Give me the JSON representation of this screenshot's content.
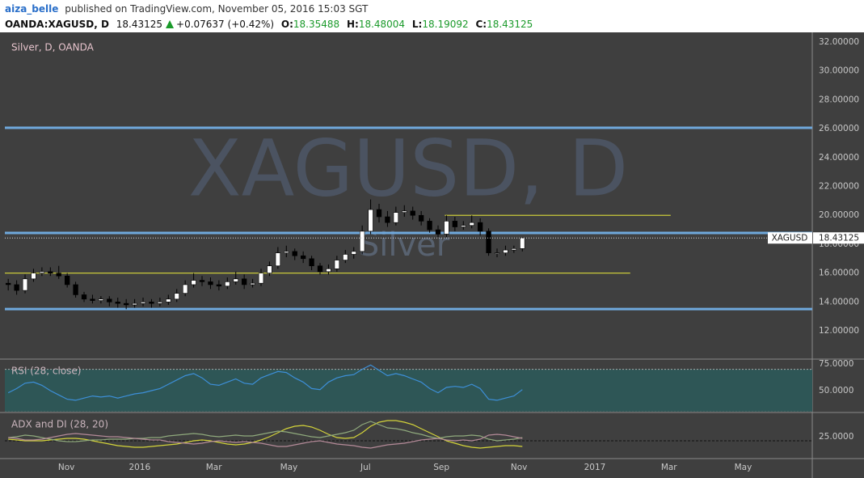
{
  "header": {
    "author": "aiza_belle",
    "published": "published on TradingView.com, November 05, 2016 15:03 SGT",
    "symbol": "OANDA:XAGUSD, D",
    "price": 18.43125,
    "change": "+0.07637 (+0.42%)",
    "open_label": "O:",
    "open": 18.35488,
    "high_label": "H:",
    "high": 18.48004,
    "low_label": "L:",
    "low": 18.19092,
    "close_label": "C:",
    "close": 18.43125
  },
  "chart_data": [
    {
      "type": "candlestick",
      "title": "Silver, D, OANDA",
      "watermark": "XAGUSD, D",
      "watermark_sub": "Silver",
      "price_label": "XAGUSD",
      "up_color": "#ffffff",
      "down_color": "#000000",
      "open": [
        15.3,
        15.2,
        14.8,
        15.6,
        16.0,
        16.1,
        16.0,
        15.8,
        15.2,
        14.5,
        14.2,
        14.1,
        14.2,
        14.0,
        13.9,
        13.8,
        13.9,
        14.0,
        13.9,
        14.0,
        14.2,
        14.6,
        15.2,
        15.5,
        15.4,
        15.2,
        15.1,
        15.4,
        15.6,
        15.2,
        15.3,
        16.0,
        16.5,
        17.4,
        17.5,
        17.2,
        17.0,
        16.5,
        16.1,
        16.3,
        16.9,
        17.3,
        17.5,
        18.9,
        20.4,
        19.9,
        19.5,
        20.2,
        20.3,
        20.0,
        19.6,
        19.0,
        18.7,
        19.6,
        19.2,
        19.3,
        19.5,
        18.9,
        17.4,
        17.4,
        17.6,
        17.7
      ],
      "high": [
        15.6,
        15.5,
        15.9,
        16.3,
        16.4,
        16.4,
        16.5,
        16.0,
        15.4,
        14.7,
        14.5,
        14.4,
        14.4,
        14.3,
        14.2,
        14.2,
        14.3,
        14.2,
        14.3,
        14.5,
        14.9,
        15.5,
        16.0,
        15.8,
        15.7,
        15.5,
        15.7,
        16.1,
        15.9,
        15.6,
        16.3,
        16.8,
        17.8,
        17.9,
        17.7,
        17.5,
        17.2,
        16.7,
        16.6,
        17.2,
        17.6,
        17.8,
        19.3,
        21.1,
        20.8,
        20.3,
        20.6,
        20.7,
        20.6,
        20.3,
        19.8,
        19.3,
        20.0,
        19.9,
        19.6,
        20.0,
        19.8,
        19.1,
        17.7,
        17.9,
        17.9,
        18.48
      ],
      "low": [
        14.8,
        14.5,
        14.6,
        15.4,
        15.8,
        15.8,
        15.6,
        15.0,
        14.3,
        14.0,
        13.9,
        13.9,
        13.7,
        13.6,
        13.5,
        13.6,
        13.7,
        13.6,
        13.7,
        13.8,
        14.0,
        14.4,
        15.0,
        15.1,
        14.9,
        14.8,
        14.9,
        15.2,
        14.9,
        15.0,
        15.1,
        15.8,
        16.3,
        17.1,
        16.9,
        16.7,
        16.2,
        15.9,
        15.9,
        16.1,
        16.7,
        17.0,
        17.3,
        18.7,
        19.5,
        19.2,
        19.3,
        19.9,
        19.7,
        19.3,
        18.8,
        18.5,
        18.5,
        18.9,
        19.0,
        19.1,
        18.6,
        17.2,
        17.1,
        17.2,
        17.4,
        17.5
      ],
      "close": [
        15.2,
        14.8,
        15.6,
        16.0,
        16.1,
        16.0,
        15.8,
        15.2,
        14.5,
        14.2,
        14.1,
        14.2,
        14.0,
        13.9,
        13.8,
        13.9,
        14.0,
        13.9,
        14.0,
        14.2,
        14.6,
        15.2,
        15.5,
        15.4,
        15.2,
        15.1,
        15.4,
        15.6,
        15.2,
        15.3,
        16.0,
        16.5,
        17.4,
        17.5,
        17.2,
        17.0,
        16.5,
        16.1,
        16.3,
        16.9,
        17.3,
        17.5,
        18.9,
        20.4,
        19.9,
        19.5,
        20.2,
        20.3,
        20.0,
        19.6,
        19.0,
        18.7,
        19.6,
        19.2,
        19.3,
        19.5,
        18.9,
        17.4,
        17.4,
        17.6,
        17.7,
        18.43125
      ],
      "levels": [
        {
          "value": 26.06,
          "color": "#6fa8dc"
        },
        {
          "value": 18.78,
          "color": "#6fa8dc"
        },
        {
          "value": 13.51,
          "color": "#6fa8dc"
        }
      ],
      "segments": [
        {
          "value": 20.0,
          "x": [
            51.8,
            78.6
          ],
          "color": "#c9c93a"
        },
        {
          "value": 16.0,
          "x": [
            -0.4,
            73.8
          ],
          "color": "#c9c93a"
        }
      ],
      "xlim": [
        -0.4,
        95.4
      ],
      "ylim": [
        10.1,
        32.56
      ],
      "yticks": [
        {
          "value": 12,
          "label": "12.00000"
        },
        {
          "value": 14,
          "label": "14.00000"
        },
        {
          "value": 16,
          "label": "16.00000"
        },
        {
          "value": 18,
          "label": "18.00000"
        },
        {
          "value": 20,
          "label": "20.00000"
        },
        {
          "value": 22,
          "label": "22.00000"
        },
        {
          "value": 24,
          "label": "24.00000"
        },
        {
          "value": 26,
          "label": "26.00000"
        },
        {
          "value": 28,
          "label": "28.00000"
        },
        {
          "value": 30,
          "label": "30.00000"
        },
        {
          "value": 32,
          "label": "32.00000"
        }
      ]
    },
    {
      "type": "line",
      "title": "RSI (28, close)",
      "band": [
        30,
        70
      ],
      "band_color": "#2e5656",
      "series": [
        {
          "color": "#3d8fd8",
          "values": [
            48,
            52,
            57,
            58,
            55,
            50,
            46,
            42,
            41,
            43,
            45,
            44,
            45,
            43,
            45,
            47,
            48,
            50,
            52,
            56,
            60,
            64,
            66,
            62,
            56,
            55,
            58,
            61,
            57,
            56,
            62,
            65,
            68,
            67,
            62,
            58,
            52,
            51,
            58,
            62,
            64,
            65,
            70,
            74,
            69,
            64,
            66,
            64,
            61,
            58,
            52,
            48,
            53,
            54,
            53,
            56,
            52,
            42,
            41,
            43,
            45,
            51
          ]
        }
      ],
      "xlim": [
        -0.4,
        95.4
      ],
      "ylim": [
        30.3,
        78.8
      ],
      "yticks": [
        {
          "value": 50,
          "label": "50.0000"
        },
        {
          "value": 75,
          "label": "75.0000"
        }
      ]
    },
    {
      "type": "line",
      "title": "ADX and DI (28, 20)",
      "threshold": 20,
      "series": [
        {
          "color": "#d4d43a",
          "values": [
            22,
            21,
            20,
            20,
            20,
            21,
            22,
            23,
            23,
            22,
            20,
            18,
            16,
            14,
            13,
            12,
            12,
            13,
            14,
            15,
            16,
            18,
            20,
            21,
            20,
            18,
            16,
            15,
            16,
            18,
            21,
            25,
            30,
            35,
            38,
            39,
            37,
            33,
            28,
            24,
            23,
            24,
            30,
            38,
            43,
            45,
            45,
            43,
            40,
            35,
            30,
            25,
            20,
            17,
            14,
            12,
            11,
            12,
            13,
            14,
            14,
            13
          ]
        },
        {
          "color": "#8fa97c",
          "values": [
            24,
            25,
            27,
            26,
            24,
            22,
            20,
            19,
            19,
            20,
            21,
            21,
            22,
            22,
            22,
            23,
            23,
            24,
            24,
            26,
            27,
            28,
            29,
            28,
            26,
            25,
            26,
            27,
            26,
            26,
            28,
            30,
            32,
            31,
            29,
            27,
            25,
            24,
            26,
            28,
            30,
            33,
            40,
            44,
            40,
            36,
            35,
            33,
            30,
            28,
            25,
            23,
            25,
            26,
            26,
            27,
            26,
            22,
            20,
            21,
            22,
            24
          ]
        },
        {
          "color": "#b48a98",
          "values": [
            24,
            23,
            21,
            21,
            22,
            24,
            26,
            28,
            29,
            28,
            27,
            26,
            25,
            25,
            24,
            23,
            22,
            21,
            21,
            19,
            18,
            17,
            16,
            17,
            19,
            20,
            19,
            18,
            19,
            18,
            17,
            15,
            13,
            13,
            15,
            17,
            19,
            20,
            18,
            16,
            15,
            14,
            12,
            11,
            13,
            15,
            16,
            17,
            19,
            21,
            22,
            23,
            21,
            20,
            21,
            20,
            22,
            27,
            28,
            27,
            25,
            23
          ]
        }
      ],
      "xlim": [
        -0.4,
        95.4
      ],
      "ylim": [
        -2,
        54
      ],
      "yticks": [
        {
          "value": 25,
          "label": "25.0000"
        }
      ],
      "xticks": [
        {
          "value": 6.9,
          "label": "Nov"
        },
        {
          "value": 15.6,
          "label": "2016"
        },
        {
          "value": 24.4,
          "label": "Mar"
        },
        {
          "value": 33.3,
          "label": "May"
        },
        {
          "value": 42.4,
          "label": "Jul"
        },
        {
          "value": 51.4,
          "label": "Sep"
        },
        {
          "value": 60.6,
          "label": "Nov"
        },
        {
          "value": 69.6,
          "label": "2017"
        },
        {
          "value": 78.4,
          "label": "Mar"
        },
        {
          "value": 87.2,
          "label": "May"
        }
      ]
    }
  ]
}
